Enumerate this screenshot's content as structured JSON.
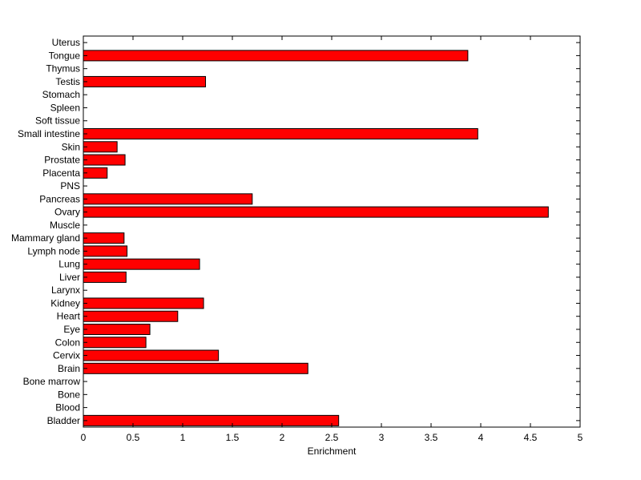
{
  "chart_data": {
    "type": "bar",
    "orientation": "horizontal",
    "title": "",
    "xlabel": "Enrichment",
    "ylabel": "",
    "xlim": [
      0,
      5
    ],
    "xticks": [
      "0",
      "0.5",
      "1",
      "1.5",
      "2",
      "2.5",
      "3",
      "3.5",
      "4",
      "4.5",
      "5"
    ],
    "grid": false,
    "categories": [
      "Bladder",
      "Blood",
      "Bone",
      "Bone marrow",
      "Brain",
      "Cervix",
      "Colon",
      "Eye",
      "Heart",
      "Kidney",
      "Larynx",
      "Liver",
      "Lung",
      "Lymph node",
      "Mammary gland",
      "Muscle",
      "Ovary",
      "Pancreas",
      "PNS",
      "Placenta",
      "Prostate",
      "Skin",
      "Small intestine",
      "Soft tissue",
      "Spleen",
      "Stomach",
      "Testis",
      "Thymus",
      "Tongue",
      "Uterus"
    ],
    "values": [
      2.57,
      0,
      0,
      0,
      2.26,
      1.36,
      0.63,
      0.67,
      0.95,
      1.21,
      0,
      0.43,
      1.17,
      0.44,
      0.41,
      0,
      4.68,
      1.7,
      0,
      0.24,
      0.42,
      0.34,
      3.97,
      0,
      0,
      0,
      1.23,
      0,
      3.87,
      0
    ],
    "colors": {
      "bar_fill": "#ff0000",
      "bar_stroke": "#000000",
      "axis": "#000000"
    }
  }
}
